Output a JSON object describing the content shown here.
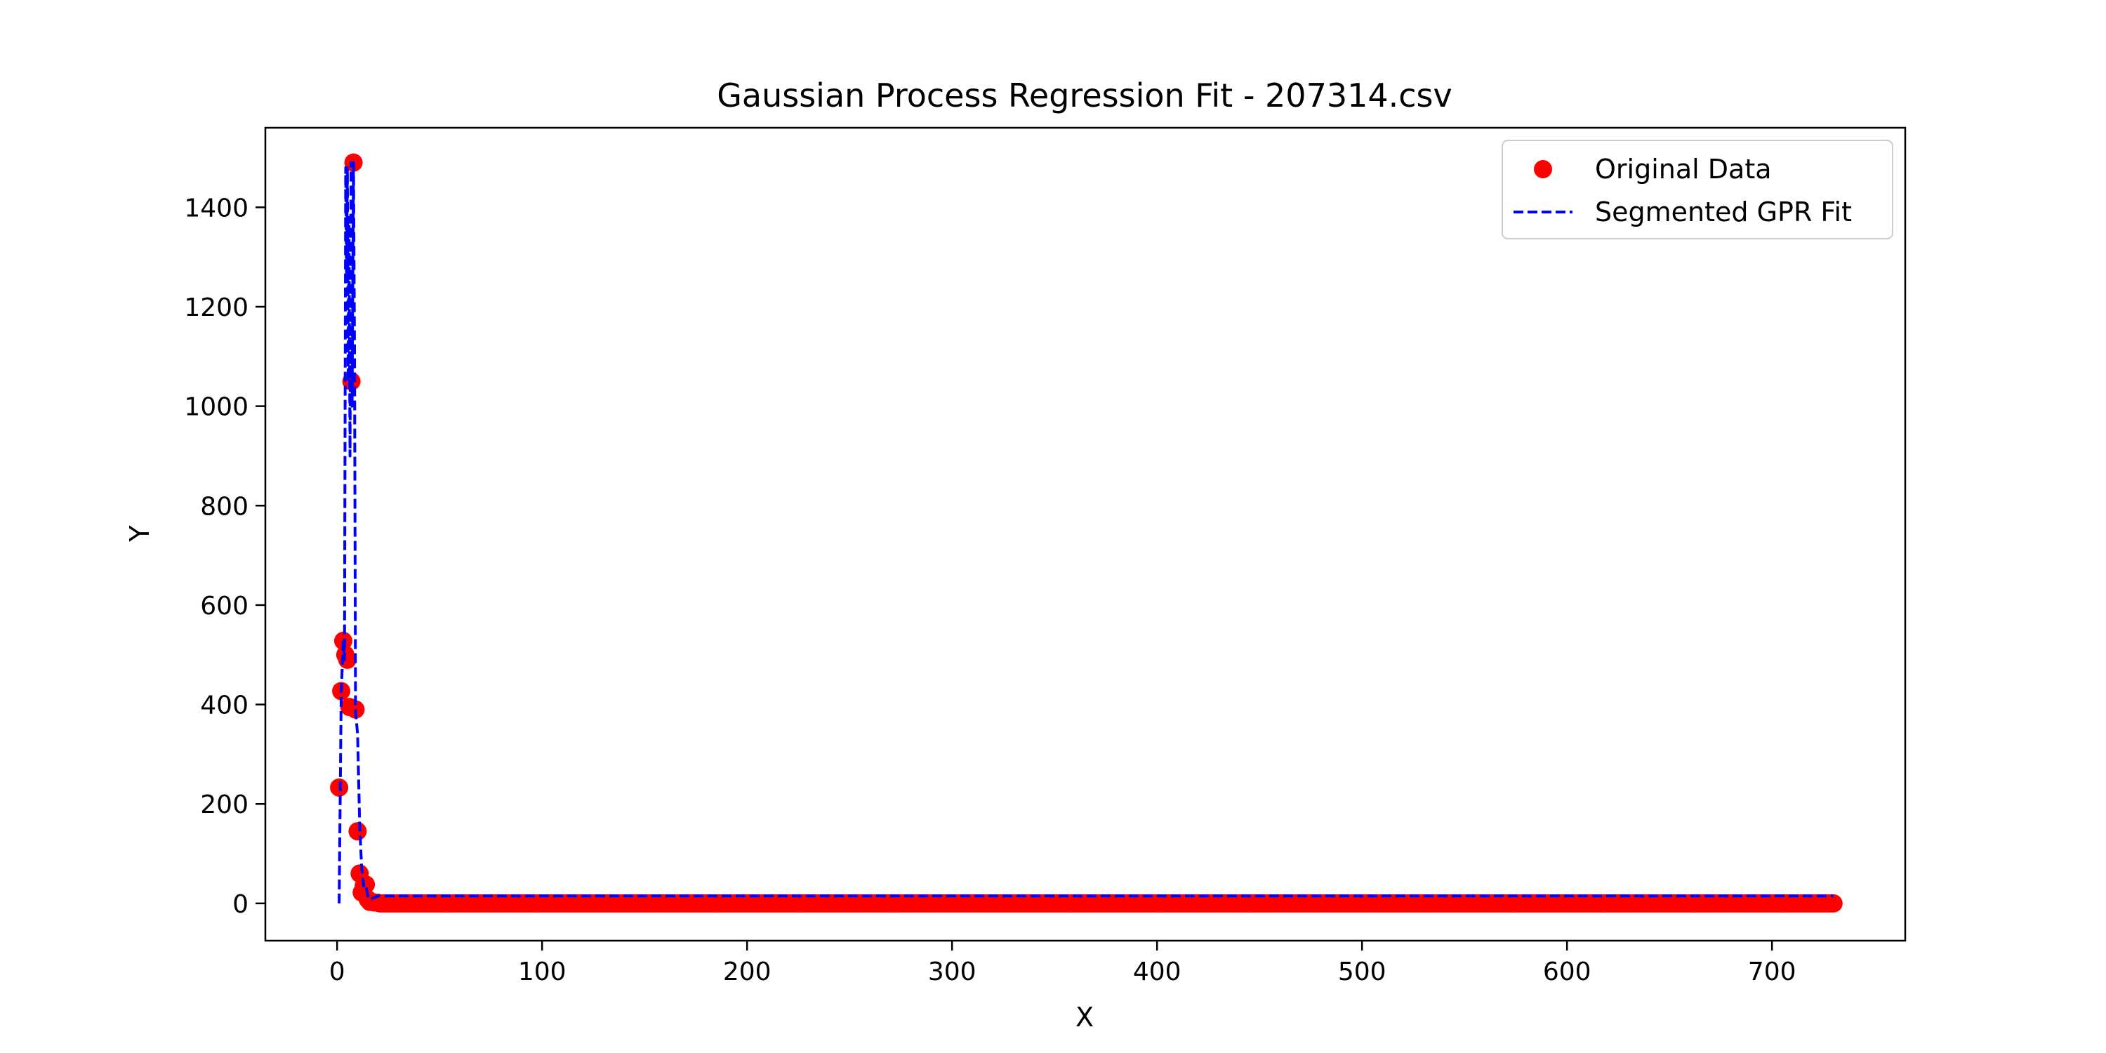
{
  "chart_data": {
    "type": "scatter",
    "title": "Gaussian Process Regression Fit - 207314.csv",
    "xlabel": "X",
    "ylabel": "Y",
    "xlim": [
      -35,
      765
    ],
    "ylim": [
      -75,
      1560
    ],
    "xticks": [
      0,
      100,
      200,
      300,
      400,
      500,
      600,
      700
    ],
    "yticks": [
      0,
      200,
      400,
      600,
      800,
      1000,
      1200,
      1400
    ],
    "grid": false,
    "legend_placement": "top-right",
    "legend": [
      "Original Data",
      "Segmented GPR Fit"
    ],
    "colors": {
      "scatter": "#ff0000",
      "fit": "#0000ff"
    },
    "series": [
      {
        "name": "Original Data",
        "kind": "scatter",
        "points": [
          [
            1,
            233
          ],
          [
            2,
            427
          ],
          [
            3,
            528
          ],
          [
            4,
            500
          ],
          [
            5,
            490
          ],
          [
            6,
            395
          ],
          [
            7,
            1050
          ],
          [
            8,
            1490
          ],
          [
            9,
            390
          ],
          [
            10,
            145
          ],
          [
            11,
            60
          ],
          [
            12,
            22
          ],
          [
            13,
            35
          ],
          [
            14,
            38
          ],
          [
            15,
            8
          ],
          [
            16,
            3
          ],
          [
            18,
            2
          ],
          [
            20,
            1
          ],
          [
            730,
            0
          ]
        ],
        "flat_range": {
          "from": 20,
          "to": 730,
          "y": 0
        }
      },
      {
        "name": "Segmented GPR Fit",
        "kind": "line",
        "style": "dashed",
        "points": [
          [
            1,
            0
          ],
          [
            2,
            420
          ],
          [
            3,
            530
          ],
          [
            3.6,
            490
          ],
          [
            4.2,
            1480
          ],
          [
            4.6,
            1250
          ],
          [
            5,
            1480
          ],
          [
            5.4,
            1050
          ],
          [
            5.8,
            1380
          ],
          [
            6.3,
            900
          ],
          [
            6.8,
            1490
          ],
          [
            7.3,
            1000
          ],
          [
            8,
            1490
          ],
          [
            8.5,
            1100
          ],
          [
            9,
            385
          ],
          [
            10,
            340
          ],
          [
            11,
            160
          ],
          [
            12,
            70
          ],
          [
            13,
            35
          ],
          [
            14,
            38
          ],
          [
            15,
            14
          ],
          [
            16,
            8
          ],
          [
            20,
            15
          ],
          [
            730,
            15
          ]
        ]
      }
    ]
  }
}
